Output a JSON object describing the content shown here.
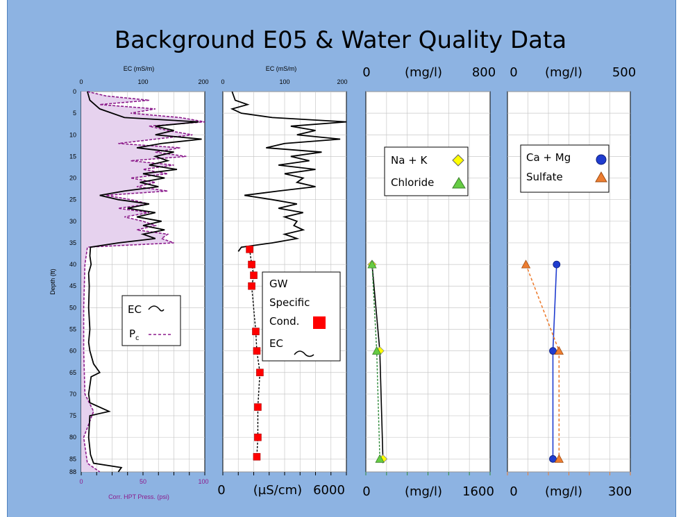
{
  "slide": {
    "title": "Background E05 & Water Quality Data",
    "colors": {
      "background": "#8db3e2",
      "ec": "#000000",
      "pc": "#8b1a8b",
      "pc_fill": "#e6d2ee",
      "gw": "#ff0000",
      "nak": "#ffff00",
      "chloride": "#66cc44",
      "camg": "#1f3ccf",
      "sulfate": "#ed7d31"
    }
  },
  "chart_data": [
    {
      "type": "line",
      "ylabel": "Depth (ft)",
      "ylim": [
        88,
        0
      ],
      "y_ticks": [
        "0",
        "5",
        "10",
        "15",
        "20",
        "25",
        "30",
        "35",
        "40",
        "45",
        "50",
        "55",
        "60",
        "65",
        "70",
        "75",
        "80",
        "85",
        "88"
      ],
      "x_top": {
        "label": "EC (mS/m)",
        "range": [
          0,
          200
        ],
        "ticks": [
          "0",
          "100",
          "200"
        ]
      },
      "x_bottom": {
        "label": "Corr. HPT Press. (psi)",
        "range": [
          0,
          100
        ],
        "ticks": [
          "0",
          "50",
          "100"
        ]
      },
      "legend": {
        "ec": "EC",
        "pc_base": "P",
        "pc_sub": "c"
      },
      "series": [
        {
          "id": "ec",
          "profile": [
            [
              0,
              10
            ],
            [
              2,
              14
            ],
            [
              4,
              30
            ],
            [
              6,
              70
            ],
            [
              7,
              190
            ],
            [
              8,
              120
            ],
            [
              9,
              150
            ],
            [
              10,
              120
            ],
            [
              11,
              195
            ],
            [
              12,
              130
            ],
            [
              13,
              90
            ],
            [
              14,
              150
            ],
            [
              15,
              120
            ],
            [
              16,
              140
            ],
            [
              17,
              110
            ],
            [
              18,
              155
            ],
            [
              19,
              100
            ],
            [
              20,
              135
            ],
            [
              21,
              95
            ],
            [
              22,
              125
            ],
            [
              23,
              70
            ],
            [
              24,
              30
            ],
            [
              25,
              60
            ],
            [
              26,
              110
            ],
            [
              27,
              75
            ],
            [
              28,
              120
            ],
            [
              29,
              90
            ],
            [
              30,
              130
            ],
            [
              31,
              100
            ],
            [
              32,
              135
            ],
            [
              33,
              100
            ],
            [
              34,
              120
            ],
            [
              35,
              60
            ],
            [
              36,
              15
            ],
            [
              38,
              14
            ],
            [
              40,
              16
            ],
            [
              42,
              12
            ],
            [
              45,
              13
            ],
            [
              50,
              12
            ],
            [
              55,
              14
            ],
            [
              58,
              12
            ],
            [
              60,
              14
            ],
            [
              63,
              20
            ],
            [
              65,
              30
            ],
            [
              66,
              16
            ],
            [
              70,
              12
            ],
            [
              72,
              14
            ],
            [
              74,
              45
            ],
            [
              75,
              14
            ],
            [
              80,
              12
            ],
            [
              84,
              15
            ],
            [
              86,
              20
            ],
            [
              87,
              65
            ],
            [
              88,
              60
            ]
          ]
        },
        {
          "id": "pc",
          "profile": [
            [
              0,
              5
            ],
            [
              1,
              20
            ],
            [
              2,
              55
            ],
            [
              3,
              15
            ],
            [
              4,
              60
            ],
            [
              5,
              40
            ],
            [
              6,
              80
            ],
            [
              7,
              100
            ],
            [
              8,
              55
            ],
            [
              9,
              70
            ],
            [
              10,
              90
            ],
            [
              11,
              60
            ],
            [
              12,
              30
            ],
            [
              13,
              80
            ],
            [
              14,
              60
            ],
            [
              15,
              85
            ],
            [
              16,
              40
            ],
            [
              17,
              75
            ],
            [
              18,
              50
            ],
            [
              19,
              70
            ],
            [
              20,
              40
            ],
            [
              21,
              60
            ],
            [
              22,
              45
            ],
            [
              23,
              70
            ],
            [
              24,
              20
            ],
            [
              25,
              40
            ],
            [
              26,
              55
            ],
            [
              27,
              30
            ],
            [
              28,
              55
            ],
            [
              29,
              35
            ],
            [
              30,
              50
            ],
            [
              31,
              60
            ],
            [
              32,
              45
            ],
            [
              33,
              70
            ],
            [
              34,
              65
            ],
            [
              35,
              75
            ],
            [
              36,
              5
            ],
            [
              40,
              3
            ],
            [
              50,
              2
            ],
            [
              60,
              2
            ],
            [
              70,
              3
            ],
            [
              74,
              10
            ],
            [
              80,
              2
            ],
            [
              86,
              5
            ],
            [
              88,
              15
            ]
          ]
        }
      ]
    },
    {
      "type": "line",
      "x_top": {
        "label": "EC (mS/m)",
        "range": [
          0,
          200
        ],
        "ticks": [
          "0",
          "100",
          "200"
        ]
      },
      "x_bottom": {
        "label": "(µS/cm)",
        "range": [
          0,
          6000
        ],
        "ticks": [
          "0",
          "6000"
        ]
      },
      "legend": {
        "gw_line1": "GW",
        "gw_line2": "Specific",
        "gw_line3": "Cond.",
        "ec": "EC"
      },
      "series": [
        {
          "id": "ec",
          "profile": [
            [
              0,
              15
            ],
            [
              2,
              20
            ],
            [
              3,
              40
            ],
            [
              4,
              15
            ],
            [
              5,
              30
            ],
            [
              6,
              80
            ],
            [
              7,
              200
            ],
            [
              8,
              110
            ],
            [
              9,
              150
            ],
            [
              10,
              120
            ],
            [
              11,
              190
            ],
            [
              12,
              100
            ],
            [
              13,
              70
            ],
            [
              14,
              160
            ],
            [
              15,
              110
            ],
            [
              16,
              140
            ],
            [
              17,
              90
            ],
            [
              18,
              150
            ],
            [
              19,
              100
            ],
            [
              20,
              130
            ],
            [
              21,
              120
            ],
            [
              22,
              150
            ],
            [
              23,
              90
            ],
            [
              24,
              35
            ],
            [
              25,
              80
            ],
            [
              26,
              120
            ],
            [
              27,
              90
            ],
            [
              28,
              130
            ],
            [
              29,
              100
            ],
            [
              30,
              120
            ],
            [
              31,
              115
            ],
            [
              32,
              130
            ],
            [
              33,
              100
            ],
            [
              34,
              120
            ],
            [
              35,
              80
            ],
            [
              36,
              30
            ],
            [
              37,
              25
            ]
          ]
        },
        {
          "id": "gw",
          "name": "GW Specific Cond.",
          "x": [
            1300,
            1400,
            1500,
            1400,
            1600,
            1650,
            1800,
            1700,
            1700,
            1650
          ],
          "depth": [
            36.5,
            40,
            42.5,
            45,
            55.5,
            60,
            65,
            73,
            80,
            84.5
          ]
        }
      ]
    },
    {
      "type": "line",
      "x_top": {
        "label": "(mg/l)",
        "range": [
          0,
          800
        ],
        "ticks": [
          "0",
          "800"
        ]
      },
      "x_bottom": {
        "label": "(mg/l)",
        "range": [
          0,
          1600
        ],
        "ticks": [
          "0",
          "1600"
        ]
      },
      "legend": {
        "nak": "Na + K",
        "chloride": "Chloride"
      },
      "series": [
        {
          "id": "nak",
          "name": "Na + K",
          "x": [
            40,
            90,
            110
          ],
          "depth": [
            40,
            60,
            85
          ]
        },
        {
          "id": "chloride",
          "name": "Chloride",
          "x": [
            40,
            70,
            90
          ],
          "depth": [
            40,
            60,
            85
          ]
        }
      ]
    },
    {
      "type": "line",
      "x_top": {
        "label": "(mg/l)",
        "range": [
          0,
          500
        ],
        "ticks": [
          "0",
          "500"
        ]
      },
      "x_bottom": {
        "label": "(mg/l)",
        "range": [
          0,
          300
        ],
        "ticks": [
          "0",
          "300"
        ]
      },
      "legend": {
        "camg": "Ca + Mg",
        "sulfate": "Sulfate"
      },
      "series": [
        {
          "id": "camg",
          "name": "Ca + Mg",
          "x": [
            200,
            185,
            185
          ],
          "depth": [
            40,
            60,
            85
          ]
        },
        {
          "id": "sulfate",
          "name": "Sulfate",
          "x": [
            75,
            210,
            210
          ],
          "depth": [
            40,
            60,
            85
          ]
        }
      ]
    }
  ]
}
